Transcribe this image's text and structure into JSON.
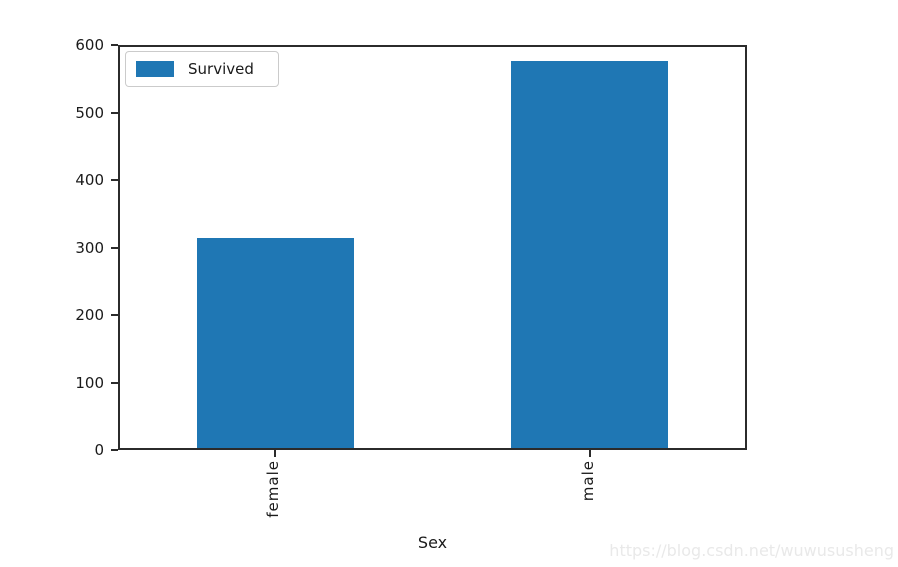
{
  "chart_data": {
    "type": "bar",
    "title": "",
    "xlabel": "Sex",
    "ylabel": "",
    "categories": [
      "female",
      "male"
    ],
    "series": [
      {
        "name": "Survived",
        "values": [
          314,
          577
        ]
      }
    ],
    "ylim": [
      0,
      600
    ],
    "yticks": [
      0,
      100,
      200,
      300,
      400,
      500,
      600
    ],
    "bar_color": "#1f77b4",
    "grid": false,
    "legend_position": "upper left",
    "x_tick_rotation": 90
  },
  "legend": {
    "label": "Survived",
    "swatch_color": "#1f77b4"
  },
  "watermark": {
    "text": "https://blog.csdn.net/wuwususheng",
    "color": "#e9e9e9"
  }
}
